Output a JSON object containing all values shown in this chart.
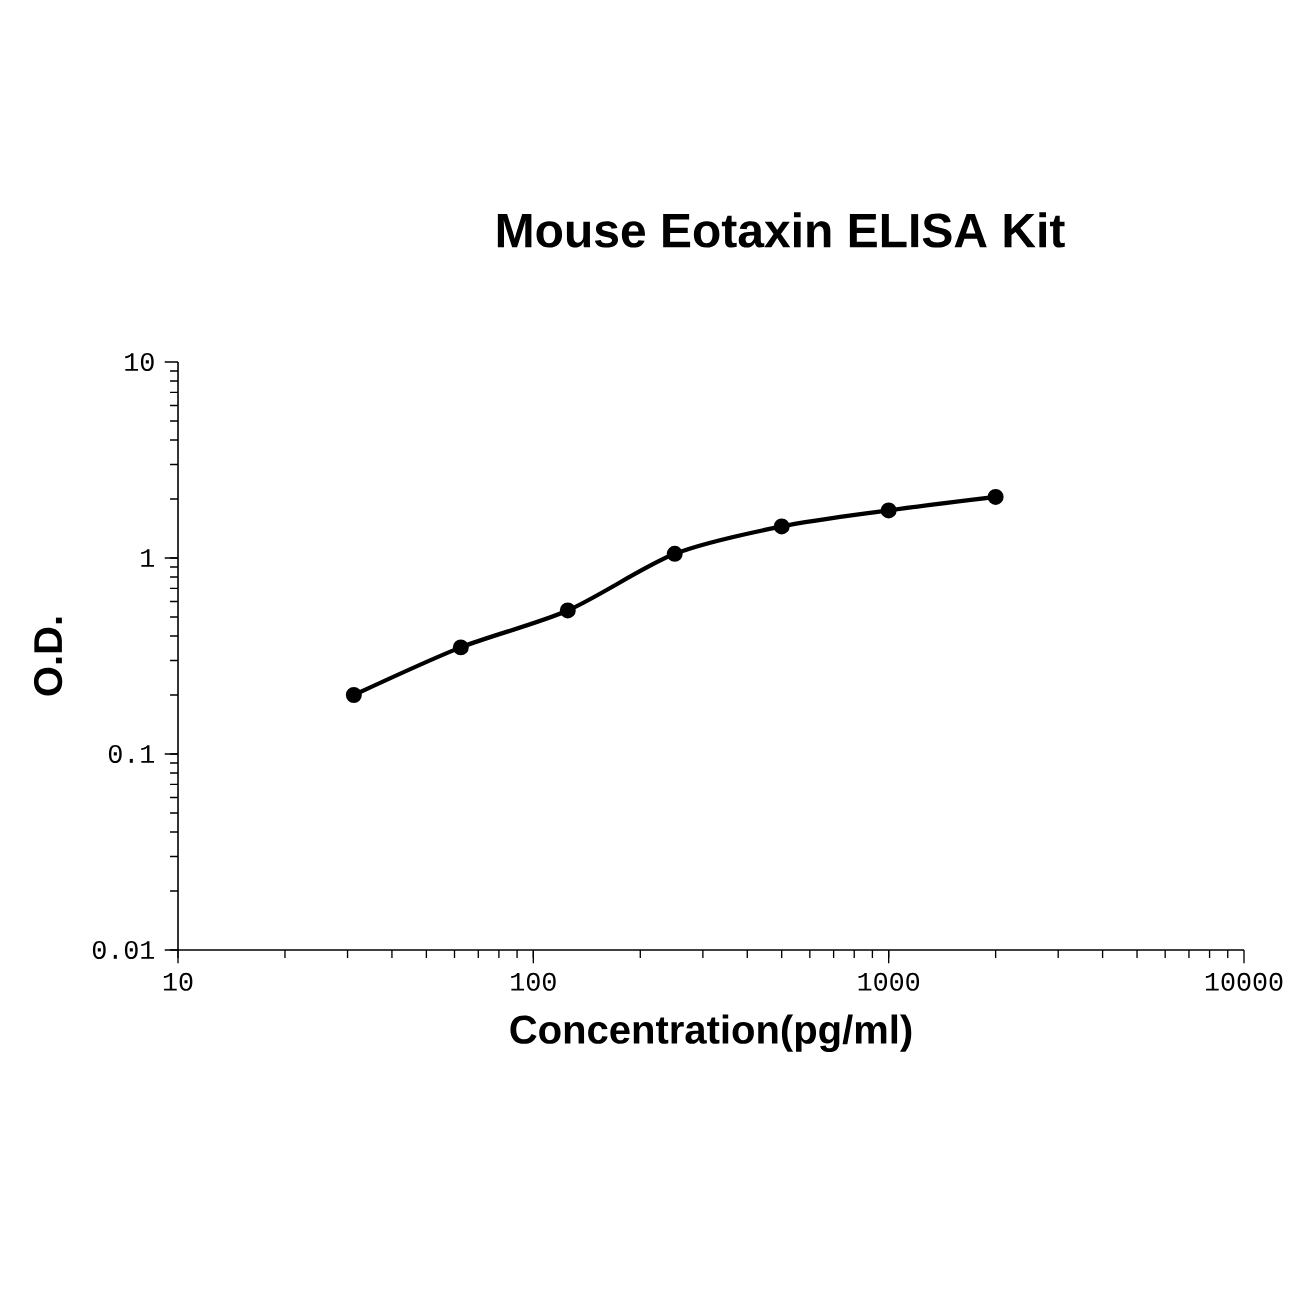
{
  "chart_data": {
    "type": "line",
    "title": "Mouse Eotaxin ELISA Kit",
    "xlabel": "Concentration(pg/ml)",
    "ylabel": "O.D.",
    "x": [
      31.25,
      62.5,
      125,
      250,
      500,
      1000,
      2000
    ],
    "values": [
      0.2,
      0.35,
      0.54,
      1.05,
      1.45,
      1.75,
      2.05
    ],
    "color": "#000000",
    "log": "xy",
    "marker": "circle",
    "line_style": "solid",
    "xlim": [
      10,
      10000
    ],
    "ylim": [
      0.01,
      10
    ],
    "xticks": [
      10,
      100,
      1000,
      10000
    ],
    "yticks": [
      0.01,
      0.1,
      1,
      10
    ]
  }
}
